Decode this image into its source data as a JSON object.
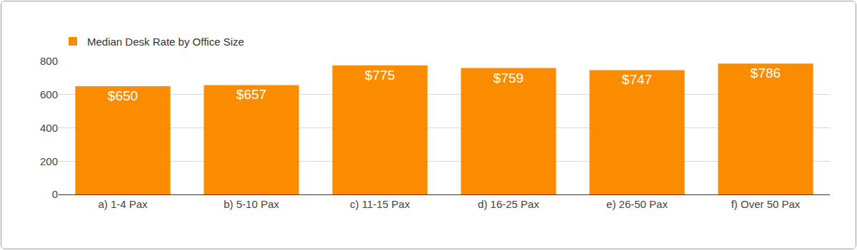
{
  "chart_data": {
    "type": "bar",
    "categories": [
      "a) 1-4 Pax",
      "b) 5-10 Pax",
      "c) 11-15 Pax",
      "d) 16-25 Pax",
      "e) 26-50 Pax",
      "f) Over 50 Pax"
    ],
    "series": [
      {
        "name": "Median Desk Rate by Office Size",
        "color": "#fb8c00",
        "values": [
          650,
          657,
          775,
          759,
          747,
          786
        ],
        "value_labels": [
          "$650",
          "$657",
          "$775",
          "$759",
          "$747",
          "$786"
        ]
      }
    ],
    "ylim": [
      0,
      800
    ],
    "yticks": [
      0,
      200,
      400,
      600,
      800
    ],
    "grid": true,
    "legend": "top-left",
    "data_labels": true
  }
}
